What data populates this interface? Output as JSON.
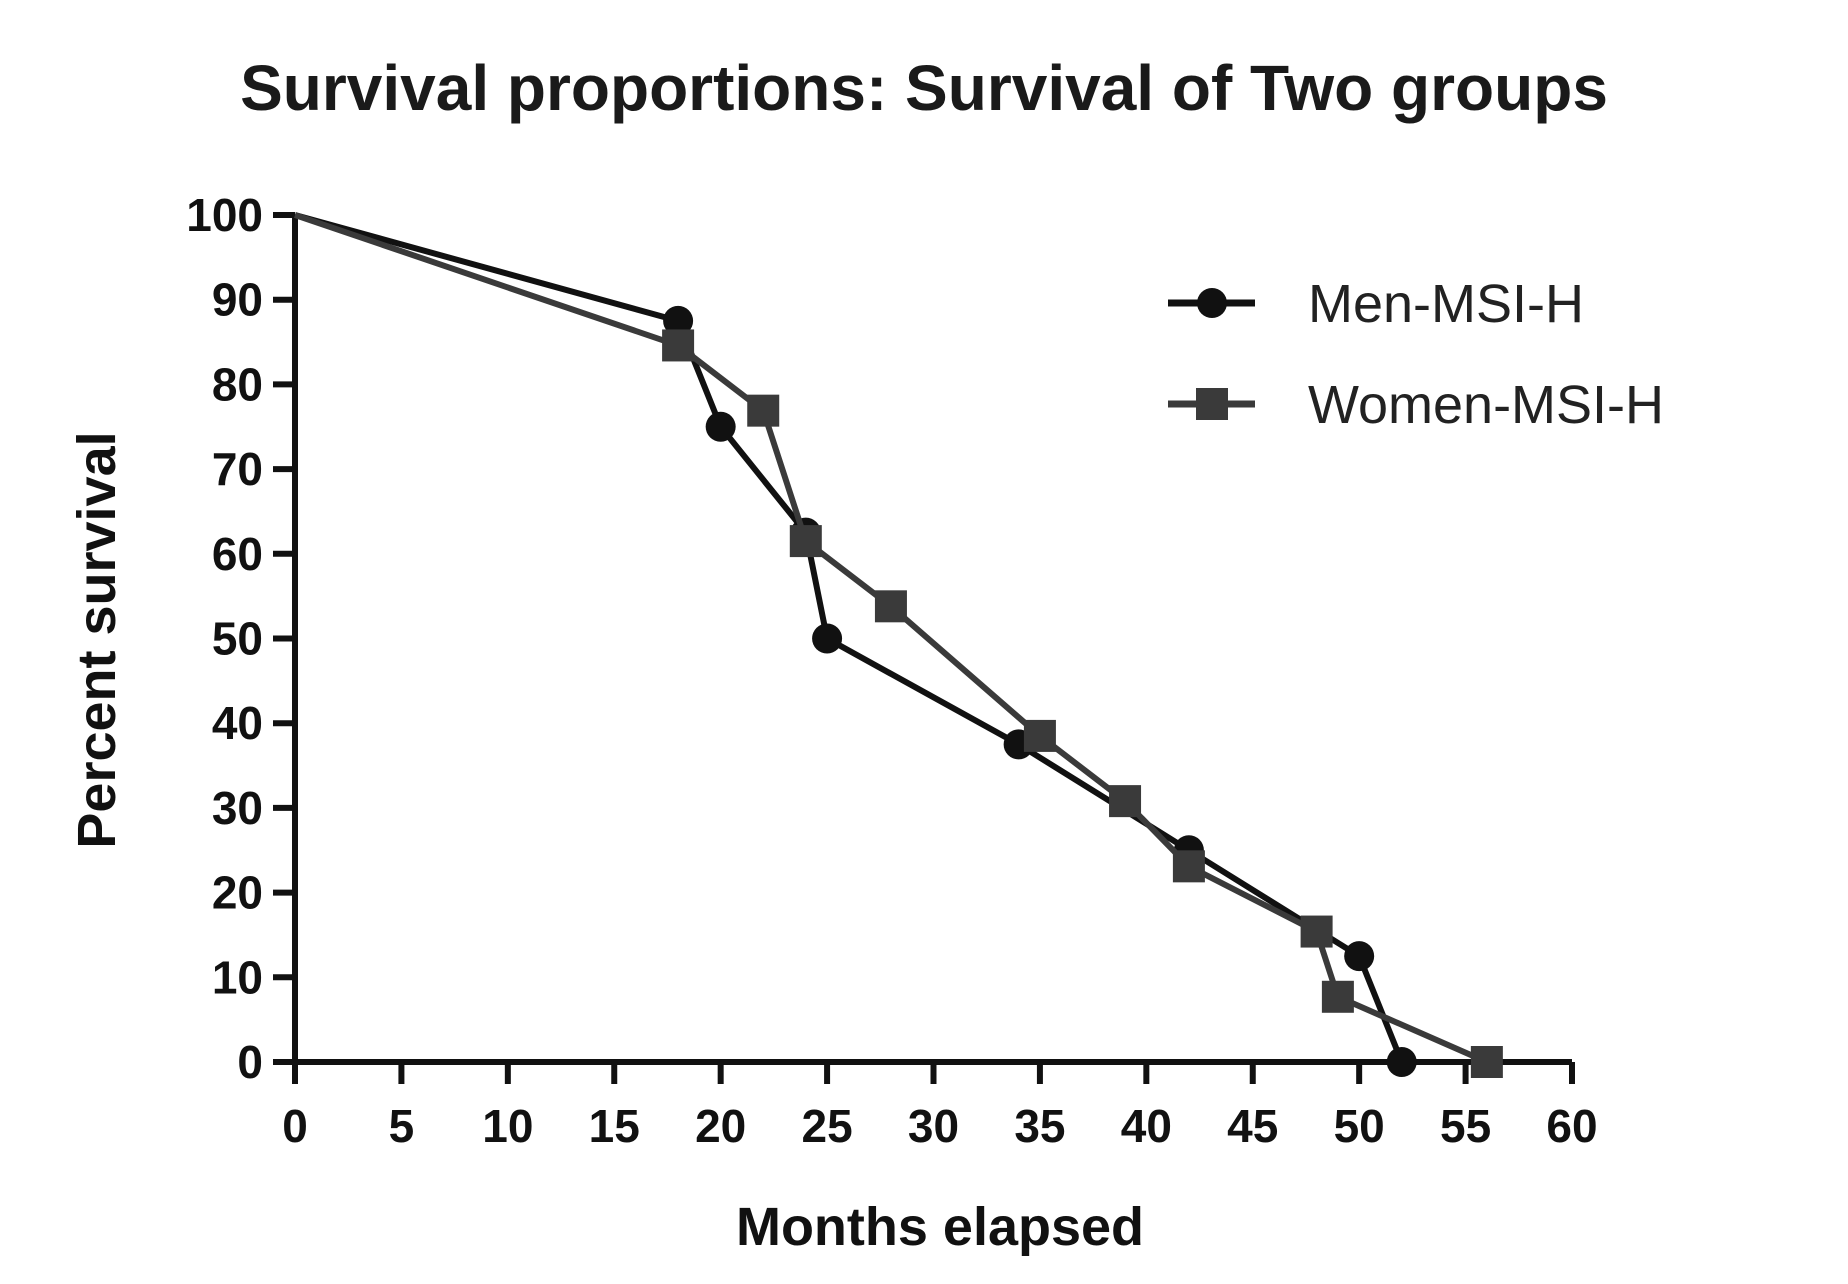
{
  "chart_data": {
    "type": "line",
    "title": "Survival proportions: Survival of Two groups",
    "xlabel": "Months elapsed",
    "ylabel": "Percent survival",
    "xlim": [
      0,
      60
    ],
    "ylim": [
      0,
      100
    ],
    "xticks": [
      0,
      5,
      10,
      15,
      20,
      25,
      30,
      35,
      40,
      45,
      50,
      55,
      60
    ],
    "yticks": [
      0,
      10,
      20,
      30,
      40,
      50,
      60,
      70,
      80,
      90,
      100
    ],
    "grid": false,
    "legend_position": "top-right",
    "series": [
      {
        "name": "Men-MSI-H",
        "marker": "circle",
        "color": "#111111",
        "x": [
          0,
          18,
          20,
          24,
          25,
          34,
          42,
          50,
          52
        ],
        "y": [
          100,
          87.5,
          75,
          62.5,
          50,
          37.5,
          25,
          12.5,
          0
        ],
        "marked": [
          false,
          true,
          true,
          true,
          true,
          true,
          true,
          true,
          true
        ]
      },
      {
        "name": "Women-MSI-H",
        "marker": "square",
        "color": "#3a3a3a",
        "x": [
          0,
          18,
          22,
          24,
          28,
          35,
          39,
          42,
          48,
          49,
          56
        ],
        "y": [
          100,
          84.6,
          76.9,
          61.5,
          53.8,
          38.5,
          30.8,
          23.1,
          15.4,
          7.7,
          0
        ],
        "marked": [
          false,
          true,
          true,
          true,
          true,
          true,
          true,
          true,
          true,
          true,
          true
        ]
      }
    ]
  }
}
